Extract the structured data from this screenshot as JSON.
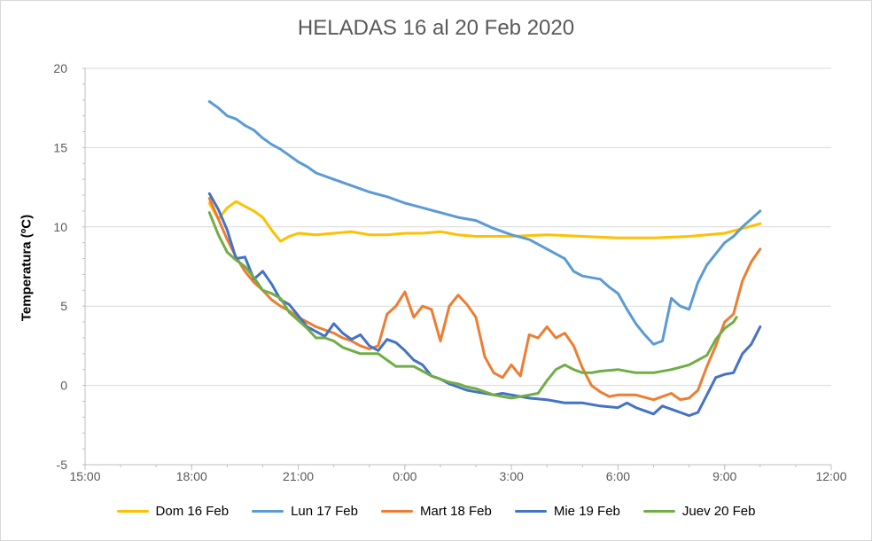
{
  "chart_data": {
    "type": "line",
    "title": "HELADAS 16 al 20 Feb 2020",
    "xlabel": "",
    "ylabel": "Temperatura (ºC)",
    "xlim": [
      "15:00",
      "12:00"
    ],
    "ylim": [
      -5,
      20
    ],
    "x_ticks": [
      "15:00",
      "18:00",
      "21:00",
      "0:00",
      "3:00",
      "6:00",
      "9:00",
      "12:00"
    ],
    "y_ticks": [
      "-5",
      "0",
      "5",
      "10",
      "15",
      "20"
    ],
    "grid": "horizontal",
    "legend_position": "bottom",
    "series": [
      {
        "name": "Dom 16 Feb",
        "color": "#FFC000",
        "points": [
          [
            "18:30",
            11.5
          ],
          [
            "18:45",
            10.5
          ],
          [
            "19:00",
            11.2
          ],
          [
            "19:15",
            11.6
          ],
          [
            "19:30",
            11.3
          ],
          [
            "19:45",
            11.0
          ],
          [
            "20:00",
            10.6
          ],
          [
            "20:15",
            9.8
          ],
          [
            "20:30",
            9.1
          ],
          [
            "20:45",
            9.4
          ],
          [
            "21:00",
            9.6
          ],
          [
            "21:30",
            9.5
          ],
          [
            "22:00",
            9.6
          ],
          [
            "22:30",
            9.7
          ],
          [
            "23:00",
            9.5
          ],
          [
            "23:30",
            9.5
          ],
          [
            "0:00",
            9.6
          ],
          [
            "0:30",
            9.6
          ],
          [
            "1:00",
            9.7
          ],
          [
            "1:30",
            9.5
          ],
          [
            "2:00",
            9.4
          ],
          [
            "2:30",
            9.4
          ],
          [
            "3:00",
            9.4
          ],
          [
            "4:00",
            9.5
          ],
          [
            "5:00",
            9.4
          ],
          [
            "6:00",
            9.3
          ],
          [
            "7:00",
            9.3
          ],
          [
            "8:00",
            9.4
          ],
          [
            "9:00",
            9.6
          ],
          [
            "9:30",
            9.9
          ],
          [
            "10:00",
            10.2
          ]
        ]
      },
      {
        "name": "Lun 17 Feb",
        "color": "#5B9BD5",
        "points": [
          [
            "18:30",
            17.9
          ],
          [
            "18:45",
            17.5
          ],
          [
            "19:00",
            17.0
          ],
          [
            "19:15",
            16.8
          ],
          [
            "19:30",
            16.4
          ],
          [
            "19:45",
            16.1
          ],
          [
            "20:00",
            15.6
          ],
          [
            "20:15",
            15.2
          ],
          [
            "20:30",
            14.9
          ],
          [
            "20:45",
            14.5
          ],
          [
            "21:00",
            14.1
          ],
          [
            "21:15",
            13.8
          ],
          [
            "21:30",
            13.4
          ],
          [
            "22:00",
            13.0
          ],
          [
            "22:30",
            12.6
          ],
          [
            "23:00",
            12.2
          ],
          [
            "23:30",
            11.9
          ],
          [
            "0:00",
            11.5
          ],
          [
            "0:30",
            11.2
          ],
          [
            "1:00",
            10.9
          ],
          [
            "1:30",
            10.6
          ],
          [
            "2:00",
            10.4
          ],
          [
            "2:30",
            9.9
          ],
          [
            "3:00",
            9.5
          ],
          [
            "3:30",
            9.2
          ],
          [
            "4:00",
            8.6
          ],
          [
            "4:30",
            8.0
          ],
          [
            "4:45",
            7.2
          ],
          [
            "5:00",
            6.9
          ],
          [
            "5:30",
            6.7
          ],
          [
            "5:45",
            6.2
          ],
          [
            "6:00",
            5.8
          ],
          [
            "6:15",
            4.8
          ],
          [
            "6:30",
            3.9
          ],
          [
            "6:45",
            3.2
          ],
          [
            "7:00",
            2.6
          ],
          [
            "7:15",
            2.8
          ],
          [
            "7:30",
            5.5
          ],
          [
            "7:45",
            5.0
          ],
          [
            "8:00",
            4.8
          ],
          [
            "8:15",
            6.5
          ],
          [
            "8:30",
            7.6
          ],
          [
            "8:45",
            8.3
          ],
          [
            "9:00",
            9.0
          ],
          [
            "9:15",
            9.4
          ],
          [
            "9:30",
            10.0
          ],
          [
            "9:45",
            10.5
          ],
          [
            "10:00",
            11.0
          ]
        ]
      },
      {
        "name": "Mart 18 Feb",
        "color": "#ED7D31",
        "points": [
          [
            "18:30",
            11.8
          ],
          [
            "18:45",
            10.5
          ],
          [
            "19:00",
            9.2
          ],
          [
            "19:15",
            8.1
          ],
          [
            "19:30",
            7.2
          ],
          [
            "19:45",
            6.5
          ],
          [
            "20:00",
            6.0
          ],
          [
            "20:15",
            5.4
          ],
          [
            "20:30",
            5.0
          ],
          [
            "20:45",
            4.7
          ],
          [
            "21:00",
            4.3
          ],
          [
            "21:15",
            4.0
          ],
          [
            "21:30",
            3.7
          ],
          [
            "21:45",
            3.5
          ],
          [
            "22:00",
            3.3
          ],
          [
            "22:15",
            3.0
          ],
          [
            "22:30",
            2.8
          ],
          [
            "22:45",
            2.5
          ],
          [
            "23:00",
            2.3
          ],
          [
            "23:15",
            2.5
          ],
          [
            "23:30",
            4.5
          ],
          [
            "23:45",
            5.0
          ],
          [
            "0:00",
            5.9
          ],
          [
            "0:15",
            4.3
          ],
          [
            "0:30",
            5.0
          ],
          [
            "0:45",
            4.8
          ],
          [
            "1:00",
            2.8
          ],
          [
            "1:15",
            5.0
          ],
          [
            "1:30",
            5.7
          ],
          [
            "1:45",
            5.1
          ],
          [
            "2:00",
            4.3
          ],
          [
            "2:15",
            1.8
          ],
          [
            "2:30",
            0.8
          ],
          [
            "2:45",
            0.5
          ],
          [
            "3:00",
            1.3
          ],
          [
            "3:15",
            0.6
          ],
          [
            "3:30",
            3.2
          ],
          [
            "3:45",
            3.0
          ],
          [
            "4:00",
            3.7
          ],
          [
            "4:15",
            3.0
          ],
          [
            "4:30",
            3.3
          ],
          [
            "4:45",
            2.5
          ],
          [
            "5:00",
            1.1
          ],
          [
            "5:15",
            0.0
          ],
          [
            "5:30",
            -0.4
          ],
          [
            "5:45",
            -0.7
          ],
          [
            "6:00",
            -0.6
          ],
          [
            "6:30",
            -0.6
          ],
          [
            "7:00",
            -0.9
          ],
          [
            "7:30",
            -0.5
          ],
          [
            "7:45",
            -0.9
          ],
          [
            "8:00",
            -0.8
          ],
          [
            "8:15",
            -0.3
          ],
          [
            "8:30",
            1.2
          ],
          [
            "8:45",
            2.5
          ],
          [
            "9:00",
            4.0
          ],
          [
            "9:15",
            4.5
          ],
          [
            "9:30",
            6.6
          ],
          [
            "9:45",
            7.8
          ],
          [
            "10:00",
            8.6
          ]
        ]
      },
      {
        "name": "Mie 19 Feb",
        "color": "#4472C4",
        "points": [
          [
            "18:30",
            12.1
          ],
          [
            "18:45",
            11.1
          ],
          [
            "19:00",
            9.8
          ],
          [
            "19:15",
            8.0
          ],
          [
            "19:30",
            8.1
          ],
          [
            "19:45",
            6.7
          ],
          [
            "20:00",
            7.2
          ],
          [
            "20:15",
            6.4
          ],
          [
            "20:30",
            5.4
          ],
          [
            "20:45",
            5.1
          ],
          [
            "21:00",
            4.4
          ],
          [
            "21:15",
            3.7
          ],
          [
            "21:30",
            3.4
          ],
          [
            "21:45",
            3.1
          ],
          [
            "22:00",
            3.9
          ],
          [
            "22:15",
            3.3
          ],
          [
            "22:30",
            2.9
          ],
          [
            "22:45",
            3.2
          ],
          [
            "23:00",
            2.5
          ],
          [
            "23:15",
            2.2
          ],
          [
            "23:30",
            2.9
          ],
          [
            "23:45",
            2.7
          ],
          [
            "0:00",
            2.2
          ],
          [
            "0:15",
            1.6
          ],
          [
            "0:30",
            1.3
          ],
          [
            "0:45",
            0.6
          ],
          [
            "1:00",
            0.4
          ],
          [
            "1:15",
            0.1
          ],
          [
            "1:30",
            -0.1
          ],
          [
            "1:45",
            -0.3
          ],
          [
            "2:00",
            -0.4
          ],
          [
            "2:15",
            -0.5
          ],
          [
            "2:30",
            -0.6
          ],
          [
            "2:45",
            -0.5
          ],
          [
            "3:00",
            -0.6
          ],
          [
            "3:15",
            -0.7
          ],
          [
            "3:30",
            -0.8
          ],
          [
            "4:00",
            -0.9
          ],
          [
            "4:30",
            -1.1
          ],
          [
            "5:00",
            -1.1
          ],
          [
            "5:30",
            -1.3
          ],
          [
            "6:00",
            -1.4
          ],
          [
            "6:15",
            -1.1
          ],
          [
            "6:30",
            -1.4
          ],
          [
            "6:45",
            -1.6
          ],
          [
            "7:00",
            -1.8
          ],
          [
            "7:15",
            -1.3
          ],
          [
            "7:30",
            -1.5
          ],
          [
            "7:45",
            -1.7
          ],
          [
            "8:00",
            -1.9
          ],
          [
            "8:15",
            -1.7
          ],
          [
            "8:30",
            -0.6
          ],
          [
            "8:45",
            0.5
          ],
          [
            "9:00",
            0.7
          ],
          [
            "9:15",
            0.8
          ],
          [
            "9:30",
            2.0
          ],
          [
            "9:45",
            2.6
          ],
          [
            "10:00",
            3.7
          ]
        ]
      },
      {
        "name": "Juev 20 Feb",
        "color": "#70AD47",
        "points": [
          [
            "18:30",
            10.9
          ],
          [
            "18:45",
            9.5
          ],
          [
            "19:00",
            8.4
          ],
          [
            "19:15",
            7.9
          ],
          [
            "19:30",
            7.5
          ],
          [
            "19:45",
            6.8
          ],
          [
            "20:00",
            6.0
          ],
          [
            "20:15",
            5.8
          ],
          [
            "20:30",
            5.5
          ],
          [
            "20:45",
            4.6
          ],
          [
            "21:00",
            4.1
          ],
          [
            "21:15",
            3.6
          ],
          [
            "21:30",
            3.0
          ],
          [
            "21:45",
            3.0
          ],
          [
            "22:00",
            2.8
          ],
          [
            "22:15",
            2.4
          ],
          [
            "22:30",
            2.2
          ],
          [
            "22:45",
            2.0
          ],
          [
            "23:00",
            2.0
          ],
          [
            "23:15",
            2.0
          ],
          [
            "23:30",
            1.6
          ],
          [
            "23:45",
            1.2
          ],
          [
            "0:00",
            1.2
          ],
          [
            "0:15",
            1.2
          ],
          [
            "0:30",
            0.9
          ],
          [
            "0:45",
            0.6
          ],
          [
            "1:00",
            0.4
          ],
          [
            "1:15",
            0.2
          ],
          [
            "1:30",
            0.1
          ],
          [
            "1:45",
            -0.1
          ],
          [
            "2:00",
            -0.2
          ],
          [
            "2:15",
            -0.4
          ],
          [
            "2:30",
            -0.6
          ],
          [
            "2:45",
            -0.7
          ],
          [
            "3:00",
            -0.8
          ],
          [
            "3:15",
            -0.7
          ],
          [
            "3:30",
            -0.6
          ],
          [
            "3:45",
            -0.5
          ],
          [
            "4:00",
            0.3
          ],
          [
            "4:15",
            1.0
          ],
          [
            "4:30",
            1.3
          ],
          [
            "4:45",
            1.0
          ],
          [
            "5:00",
            0.8
          ],
          [
            "5:15",
            0.8
          ],
          [
            "5:30",
            0.9
          ],
          [
            "6:00",
            1.0
          ],
          [
            "6:30",
            0.8
          ],
          [
            "7:00",
            0.8
          ],
          [
            "7:30",
            1.0
          ],
          [
            "8:00",
            1.3
          ],
          [
            "8:30",
            1.9
          ],
          [
            "8:45",
            2.9
          ],
          [
            "9:00",
            3.6
          ],
          [
            "9:15",
            4.0
          ],
          [
            "9:20",
            4.3
          ]
        ]
      }
    ]
  }
}
